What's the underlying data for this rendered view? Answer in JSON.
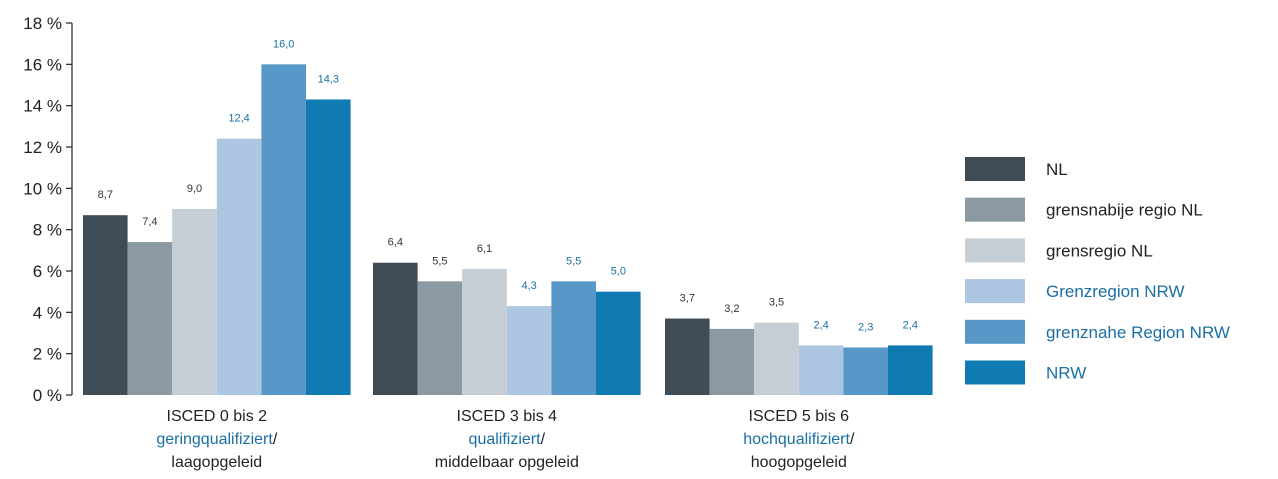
{
  "chart_data": {
    "type": "bar",
    "y_tick_labels": [
      "0 %",
      "2 %",
      "4 %",
      "6 %",
      "8 %",
      "10 %",
      "12 %",
      "14 %",
      "16 %",
      "18 %"
    ],
    "ylim": [
      0,
      18
    ],
    "y_ticks": [
      0,
      2,
      4,
      6,
      8,
      10,
      12,
      14,
      16,
      18
    ],
    "grid": false,
    "legend_position": "right",
    "categories": [
      {
        "line1": "ISCED 0 bis 2",
        "line2_highlight": "geringqualifiziert",
        "line2_suffix": "/",
        "line3": "laagopgeleid"
      },
      {
        "line1": "ISCED 3 bis 4",
        "line2_highlight": "qualifiziert",
        "line2_suffix": "/",
        "line3": "middelbaar opgeleid"
      },
      {
        "line1": "ISCED 5 bis 6",
        "line2_highlight": "hochqualifiziert",
        "line2_suffix": "/",
        "line3": "hoogopgeleid"
      }
    ],
    "series": [
      {
        "name": "NL",
        "color": "#3d4c56",
        "label_color": "#333333",
        "name_color": "#222222",
        "values": [
          8.7,
          6.4,
          3.7
        ],
        "value_labels": [
          "8,7",
          "6,4",
          "3,7"
        ]
      },
      {
        "name": "grensnabije regio NL",
        "color": "#8a99a2",
        "label_color": "#333333",
        "name_color": "#222222",
        "values": [
          7.4,
          5.5,
          3.2
        ],
        "value_labels": [
          "7,4",
          "5,5",
          "3,2"
        ]
      },
      {
        "name": "grensregio NL",
        "color": "#c5ced4",
        "label_color": "#333333",
        "name_color": "#222222",
        "values": [
          9.0,
          6.1,
          3.5
        ],
        "value_labels": [
          "9,0",
          "6,1",
          "3,5"
        ]
      },
      {
        "name": "Grenzregion NRW",
        "color": "#adc7e2",
        "label_color": "#1a6fa3",
        "name_color": "#1a6fa3",
        "values": [
          12.4,
          4.3,
          2.4
        ],
        "value_labels": [
          "12,4",
          "4,3",
          "2,4"
        ]
      },
      {
        "name": "grenznahe Region NRW",
        "color": "#5898c9",
        "label_color": "#1a6fa3",
        "name_color": "#1a6fa3",
        "values": [
          16.0,
          5.5,
          2.3
        ],
        "value_labels": [
          "16,0",
          "5,5",
          "2,3"
        ]
      },
      {
        "name": "NRW",
        "color": "#0f7bb2",
        "label_color": "#1a6fa3",
        "name_color": "#1a6fa3",
        "values": [
          14.3,
          5.0,
          2.4
        ],
        "value_labels": [
          "14,3",
          "5,0",
          "2,4"
        ]
      }
    ],
    "colors": {
      "axis": "#222222",
      "tick_text": "#222222",
      "highlight_text": "#1a6fa3"
    }
  }
}
